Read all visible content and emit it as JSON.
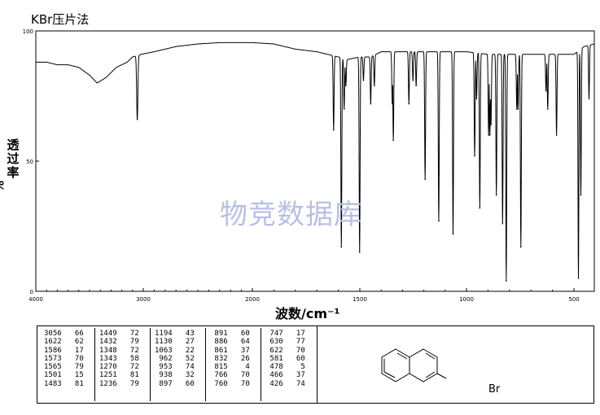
{
  "header": {
    "title": "KBr压片法"
  },
  "watermark": "物竞数据库",
  "chart_data": {
    "type": "line",
    "title": "KBr压片法",
    "xlabel": "波数/cm⁻¹",
    "ylabel_chars": [
      "透",
      "过",
      "率"
    ],
    "ylabel_unit": "%",
    "xlim": [
      4000,
      400
    ],
    "ylim": [
      0,
      100
    ],
    "x_ticks": [
      "4000",
      "3000",
      "2000",
      "1500",
      "1000",
      "500"
    ],
    "y_ticks": [
      "100",
      "50",
      "0"
    ],
    "baseline_points": [
      [
        4000,
        88
      ],
      [
        3900,
        88
      ],
      [
        3800,
        87
      ],
      [
        3700,
        87
      ],
      [
        3600,
        86
      ],
      [
        3500,
        83
      ],
      [
        3430,
        80
      ],
      [
        3350,
        82
      ],
      [
        3250,
        86
      ],
      [
        3150,
        88
      ],
      [
        3100,
        90
      ],
      [
        3020,
        91
      ],
      [
        2900,
        92
      ],
      [
        2700,
        94
      ],
      [
        2500,
        95
      ],
      [
        2300,
        95.5
      ],
      [
        2100,
        95.5
      ],
      [
        2000,
        95.5
      ],
      [
        1900,
        95
      ],
      [
        1800,
        93
      ],
      [
        1700,
        92
      ],
      [
        1650,
        91
      ],
      [
        1600,
        90
      ],
      [
        1560,
        89
      ],
      [
        1500,
        90
      ],
      [
        1450,
        90
      ],
      [
        1400,
        92
      ],
      [
        1300,
        92
      ],
      [
        1200,
        92
      ],
      [
        1100,
        92
      ],
      [
        1000,
        92
      ],
      [
        900,
        91
      ],
      [
        800,
        91
      ],
      [
        700,
        91
      ],
      [
        600,
        91
      ],
      [
        500,
        91
      ],
      [
        450,
        94
      ],
      [
        400,
        95
      ]
    ],
    "peaks": [
      {
        "wavenumber": 3056,
        "transmittance": 66
      },
      {
        "wavenumber": 1622,
        "transmittance": 62
      },
      {
        "wavenumber": 1586,
        "transmittance": 17
      },
      {
        "wavenumber": 1573,
        "transmittance": 70
      },
      {
        "wavenumber": 1565,
        "transmittance": 79
      },
      {
        "wavenumber": 1501,
        "transmittance": 15
      },
      {
        "wavenumber": 1483,
        "transmittance": 81
      },
      {
        "wavenumber": 1449,
        "transmittance": 72
      },
      {
        "wavenumber": 1432,
        "transmittance": 79
      },
      {
        "wavenumber": 1348,
        "transmittance": 72
      },
      {
        "wavenumber": 1343,
        "transmittance": 58
      },
      {
        "wavenumber": 1270,
        "transmittance": 72
      },
      {
        "wavenumber": 1251,
        "transmittance": 81
      },
      {
        "wavenumber": 1236,
        "transmittance": 79
      },
      {
        "wavenumber": 1194,
        "transmittance": 43
      },
      {
        "wavenumber": 1130,
        "transmittance": 27
      },
      {
        "wavenumber": 1063,
        "transmittance": 22
      },
      {
        "wavenumber": 962,
        "transmittance": 52
      },
      {
        "wavenumber": 953,
        "transmittance": 74
      },
      {
        "wavenumber": 938,
        "transmittance": 32
      },
      {
        "wavenumber": 897,
        "transmittance": 60
      },
      {
        "wavenumber": 891,
        "transmittance": 60
      },
      {
        "wavenumber": 886,
        "transmittance": 64
      },
      {
        "wavenumber": 861,
        "transmittance": 37
      },
      {
        "wavenumber": 832,
        "transmittance": 26
      },
      {
        "wavenumber": 815,
        "transmittance": 4
      },
      {
        "wavenumber": 766,
        "transmittance": 70
      },
      {
        "wavenumber": 760,
        "transmittance": 70
      },
      {
        "wavenumber": 747,
        "transmittance": 17
      },
      {
        "wavenumber": 630,
        "transmittance": 77
      },
      {
        "wavenumber": 622,
        "transmittance": 70
      },
      {
        "wavenumber": 581,
        "transmittance": 60
      },
      {
        "wavenumber": 478,
        "transmittance": 5
      },
      {
        "wavenumber": 466,
        "transmittance": 37
      },
      {
        "wavenumber": 426,
        "transmittance": 74
      }
    ]
  },
  "peak_table": {
    "columns": [
      [
        [
          "3056",
          "66"
        ],
        [
          "1622",
          "62"
        ],
        [
          "1586",
          "17"
        ],
        [
          "1573",
          "70"
        ],
        [
          "1565",
          "79"
        ],
        [
          "1501",
          "15"
        ],
        [
          "1483",
          "81"
        ]
      ],
      [
        [
          "1449",
          "72"
        ],
        [
          "1432",
          "79"
        ],
        [
          "1348",
          "72"
        ],
        [
          "1343",
          "58"
        ],
        [
          "1270",
          "72"
        ],
        [
          "1251",
          "81"
        ],
        [
          "1236",
          "79"
        ]
      ],
      [
        [
          "1194",
          "43"
        ],
        [
          "1130",
          "27"
        ],
        [
          "1063",
          "22"
        ],
        [
          "962",
          "52"
        ],
        [
          "953",
          "74"
        ],
        [
          "938",
          "32"
        ],
        [
          "897",
          "60"
        ]
      ],
      [
        [
          "891",
          "60"
        ],
        [
          "886",
          "64"
        ],
        [
          "861",
          "37"
        ],
        [
          "832",
          "26"
        ],
        [
          "815",
          "4"
        ],
        [
          "766",
          "70"
        ],
        [
          "760",
          "70"
        ]
      ],
      [
        [
          "747",
          "17"
        ],
        [
          "630",
          "77"
        ],
        [
          "622",
          "70"
        ],
        [
          "581",
          "60"
        ],
        [
          "478",
          "5"
        ],
        [
          "466",
          "37"
        ],
        [
          "426",
          "74"
        ]
      ]
    ]
  },
  "molecule": {
    "substituent_label": "Br"
  }
}
